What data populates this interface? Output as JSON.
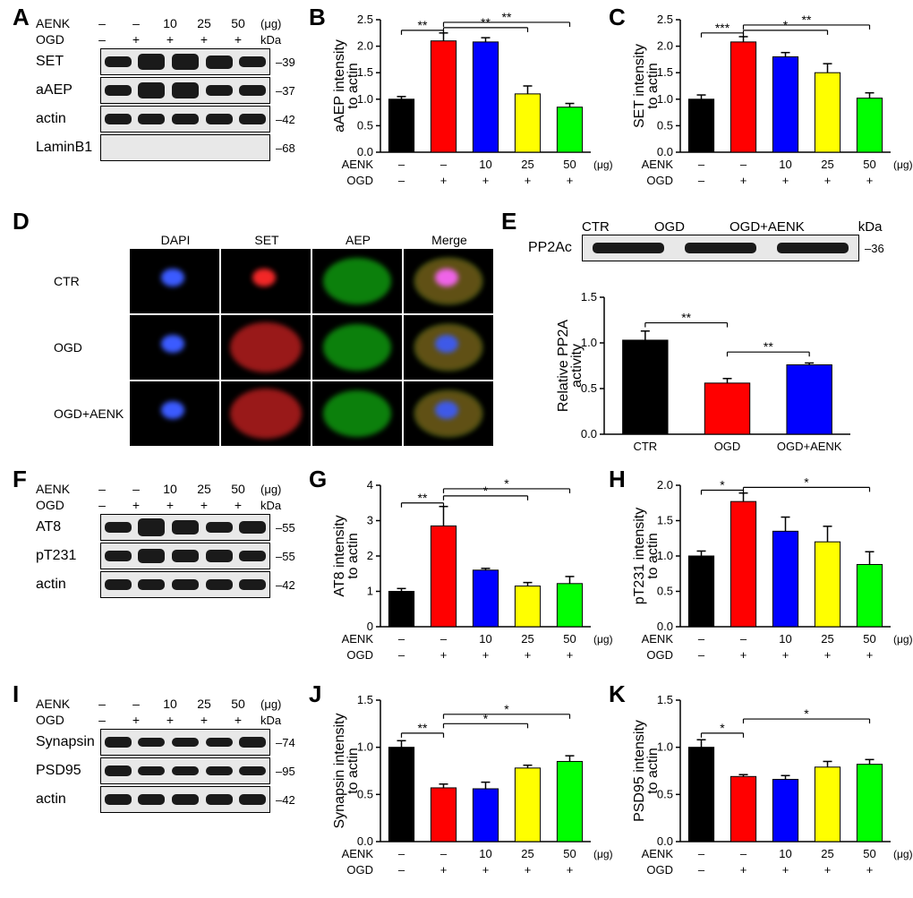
{
  "labels": {
    "A": "A",
    "B": "B",
    "C": "C",
    "D": "D",
    "E": "E",
    "F": "F",
    "G": "G",
    "H": "H",
    "I": "I",
    "J": "J",
    "K": "K"
  },
  "common": {
    "aenk": "AENK",
    "ogd": "OGD",
    "ctr": "CTR",
    "ogd_aenk": "OGD+AENK",
    "kda": "kDa",
    "ug": "(μg)",
    "doses_header": [
      "–",
      "–",
      "10",
      "25",
      "50"
    ],
    "ogd_header": [
      "–",
      "+",
      "+",
      "+",
      "+"
    ]
  },
  "panelA": {
    "rows": [
      {
        "label": "SET",
        "mw": "39",
        "bands": [
          1.0,
          2.1,
          2.0,
          1.5,
          1.1
        ]
      },
      {
        "label": "aAEP",
        "mw": "37",
        "bands": [
          1.0,
          2.1,
          2.0,
          1.1,
          0.85
        ]
      },
      {
        "label": "actin",
        "mw": "42",
        "bands": [
          1.0,
          1.0,
          1.0,
          1.0,
          1.0
        ]
      },
      {
        "label": "LaminB1",
        "mw": "68",
        "bands": [
          0,
          0,
          0,
          0,
          0
        ]
      }
    ],
    "colors": {
      "blot_bg": "#e6e6e6",
      "band": "#101010"
    }
  },
  "panelB": {
    "type": "bar",
    "ytitle": "aAEP intensity\nto actin",
    "ylim": [
      0,
      2.5
    ],
    "ytick_step": 0.5,
    "title_fontsize": 16,
    "tick_fontsize": 13,
    "categories": [
      "–/–",
      "–/+",
      "10/+",
      "25/+",
      "50/+"
    ],
    "values": [
      1.0,
      2.1,
      2.08,
      1.1,
      0.85
    ],
    "errors": [
      0.05,
      0.15,
      0.08,
      0.15,
      0.07
    ],
    "bar_colors": [
      "#000000",
      "#ff0000",
      "#0000ff",
      "#ffff00",
      "#00ff00"
    ],
    "bar_width": 0.6,
    "sig": [
      {
        "from": 0,
        "to": 1,
        "label": "**",
        "y": 2.3
      },
      {
        "from": 1,
        "to": 3,
        "label": "**",
        "y": 2.35
      },
      {
        "from": 1,
        "to": 4,
        "label": "**",
        "y": 2.45
      }
    ],
    "axis_color": "#000000",
    "background": "#ffffff"
  },
  "panelC": {
    "type": "bar",
    "ytitle": "SET intensity\nto actin",
    "ylim": [
      0,
      2.5
    ],
    "ytick_step": 0.5,
    "title_fontsize": 16,
    "tick_fontsize": 13,
    "categories": [
      "–/–",
      "–/+",
      "10/+",
      "25/+",
      "50/+"
    ],
    "values": [
      1.0,
      2.08,
      1.8,
      1.5,
      1.02
    ],
    "errors": [
      0.08,
      0.1,
      0.08,
      0.17,
      0.1
    ],
    "bar_colors": [
      "#000000",
      "#ff0000",
      "#0000ff",
      "#ffff00",
      "#00ff00"
    ],
    "bar_width": 0.6,
    "sig": [
      {
        "from": 0,
        "to": 1,
        "label": "***",
        "y": 2.25
      },
      {
        "from": 1,
        "to": 3,
        "label": "*",
        "y": 2.3
      },
      {
        "from": 1,
        "to": 4,
        "label": "**",
        "y": 2.4
      }
    ],
    "axis_color": "#000000",
    "background": "#ffffff"
  },
  "panelD": {
    "col_headers": [
      "DAPI",
      "SET",
      "AEP",
      "Merge"
    ],
    "row_headers": [
      "CTR",
      "OGD",
      "OGD+AENK"
    ],
    "colors": {
      "dapi": "#3b5bff",
      "set": "#ff2a2a",
      "aep": "#19ff19",
      "merge1": "#ff2a2a",
      "merge2": "#19ff19",
      "merge3": "#3b5bff"
    }
  },
  "panelE": {
    "blot": {
      "label": "PP2Ac",
      "mw": "36",
      "conditions": [
        "CTR",
        "OGD",
        "OGD+AENK"
      ],
      "bands": [
        1.0,
        1.0,
        1.0
      ]
    },
    "chart": {
      "type": "bar",
      "ytitle": "Relative PP2A\nactivity",
      "ylim": [
        0,
        1.5
      ],
      "ytick_step": 0.5,
      "title_fontsize": 16,
      "tick_fontsize": 13,
      "categories": [
        "CTR",
        "OGD",
        "OGD+AENK"
      ],
      "values": [
        1.03,
        0.56,
        0.76
      ],
      "errors": [
        0.1,
        0.05,
        0.02
      ],
      "bar_colors": [
        "#000000",
        "#ff0000",
        "#0000ff"
      ],
      "bar_width": 0.55,
      "sig": [
        {
          "from": 0,
          "to": 1,
          "label": "**",
          "y": 1.22
        },
        {
          "from": 1,
          "to": 2,
          "label": "**",
          "y": 0.9
        }
      ],
      "axis_color": "#000000",
      "background": "#ffffff"
    }
  },
  "panelF": {
    "rows": [
      {
        "label": "AT8",
        "mw": "55",
        "bands": [
          1.0,
          2.85,
          1.6,
          1.15,
          1.22
        ]
      },
      {
        "label": "pT231",
        "mw": "55",
        "bands": [
          1.0,
          1.77,
          1.35,
          1.2,
          0.88
        ]
      },
      {
        "label": "actin",
        "mw": "42",
        "bands": [
          1.0,
          1.0,
          1.0,
          1.0,
          1.0
        ]
      }
    ]
  },
  "panelG": {
    "type": "bar",
    "ytitle": "AT8 intensity\nto actin",
    "ylim": [
      0,
      4
    ],
    "ytick_step": 1,
    "title_fontsize": 16,
    "tick_fontsize": 13,
    "categories": [
      "–/–",
      "–/+",
      "10/+",
      "25/+",
      "50/+"
    ],
    "values": [
      1.0,
      2.85,
      1.6,
      1.15,
      1.22
    ],
    "errors": [
      0.08,
      0.55,
      0.05,
      0.1,
      0.2
    ],
    "bar_colors": [
      "#000000",
      "#ff0000",
      "#0000ff",
      "#ffff00",
      "#00ff00"
    ],
    "bar_width": 0.6,
    "sig": [
      {
        "from": 0,
        "to": 1,
        "label": "**",
        "y": 3.5
      },
      {
        "from": 1,
        "to": 3,
        "label": "*",
        "y": 3.7
      },
      {
        "from": 1,
        "to": 4,
        "label": "*",
        "y": 3.9
      }
    ],
    "axis_color": "#000000",
    "background": "#ffffff"
  },
  "panelH": {
    "type": "bar",
    "ytitle": "pT231 intensity\nto actin",
    "ylim": [
      0,
      2.0
    ],
    "ytick_step": 0.5,
    "title_fontsize": 16,
    "tick_fontsize": 13,
    "categories": [
      "–/–",
      "–/+",
      "10/+",
      "25/+",
      "50/+"
    ],
    "values": [
      1.0,
      1.77,
      1.35,
      1.2,
      0.88
    ],
    "errors": [
      0.07,
      0.12,
      0.2,
      0.22,
      0.18
    ],
    "bar_colors": [
      "#000000",
      "#ff0000",
      "#0000ff",
      "#ffff00",
      "#00ff00"
    ],
    "bar_width": 0.6,
    "sig": [
      {
        "from": 0,
        "to": 1,
        "label": "*",
        "y": 1.93
      },
      {
        "from": 1,
        "to": 4,
        "label": "*",
        "y": 1.97
      }
    ],
    "axis_color": "#000000",
    "background": "#ffffff"
  },
  "panelI": {
    "rows": [
      {
        "label": "Synapsin",
        "mw": "74",
        "bands": [
          1.0,
          0.57,
          0.56,
          0.78,
          0.85
        ]
      },
      {
        "label": "PSD95",
        "mw": "95",
        "bands": [
          1.0,
          0.69,
          0.66,
          0.79,
          0.82
        ]
      },
      {
        "label": "actin",
        "mw": "42",
        "bands": [
          1.0,
          1.0,
          1.0,
          1.0,
          1.0
        ]
      }
    ]
  },
  "panelJ": {
    "type": "bar",
    "ytitle": "Synapsin intensity\nto actin",
    "ylim": [
      0,
      1.5
    ],
    "ytick_step": 0.5,
    "title_fontsize": 16,
    "tick_fontsize": 13,
    "categories": [
      "–/–",
      "–/+",
      "10/+",
      "25/+",
      "50/+"
    ],
    "values": [
      1.0,
      0.57,
      0.56,
      0.78,
      0.85
    ],
    "errors": [
      0.07,
      0.04,
      0.07,
      0.03,
      0.06
    ],
    "bar_colors": [
      "#000000",
      "#ff0000",
      "#0000ff",
      "#ffff00",
      "#00ff00"
    ],
    "bar_width": 0.6,
    "sig": [
      {
        "from": 0,
        "to": 1,
        "label": "**",
        "y": 1.15
      },
      {
        "from": 1,
        "to": 3,
        "label": "*",
        "y": 1.25
      },
      {
        "from": 1,
        "to": 4,
        "label": "*",
        "y": 1.35
      }
    ],
    "axis_color": "#000000",
    "background": "#ffffff"
  },
  "panelK": {
    "type": "bar",
    "ytitle": "PSD95 intensity\nto actin",
    "ylim": [
      0,
      1.5
    ],
    "ytick_step": 0.5,
    "title_fontsize": 16,
    "tick_fontsize": 13,
    "categories": [
      "–/–",
      "–/+",
      "10/+",
      "25/+",
      "50/+"
    ],
    "values": [
      1.0,
      0.69,
      0.66,
      0.79,
      0.82
    ],
    "errors": [
      0.08,
      0.02,
      0.04,
      0.06,
      0.05
    ],
    "bar_colors": [
      "#000000",
      "#ff0000",
      "#0000ff",
      "#ffff00",
      "#00ff00"
    ],
    "bar_width": 0.6,
    "sig": [
      {
        "from": 0,
        "to": 1,
        "label": "*",
        "y": 1.15
      },
      {
        "from": 1,
        "to": 4,
        "label": "*",
        "y": 1.3
      }
    ],
    "axis_color": "#000000",
    "background": "#ffffff"
  }
}
